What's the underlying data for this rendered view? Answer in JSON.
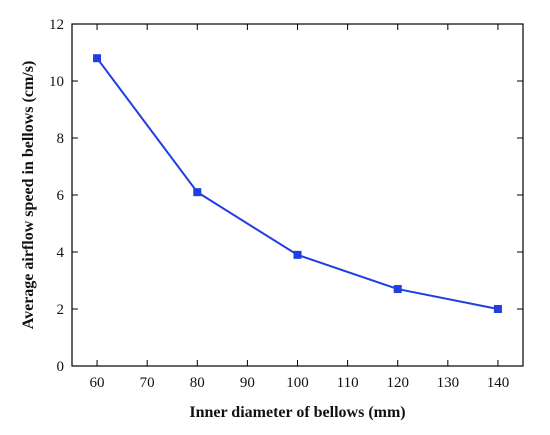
{
  "chart_data": {
    "type": "line",
    "xlabel": "Inner diameter of bellows (mm)",
    "ylabel": "Average airflow speed in bellows (cm/s)",
    "xlim": [
      55,
      145
    ],
    "ylim": [
      0,
      12
    ],
    "xticks": [
      60,
      70,
      80,
      90,
      100,
      110,
      120,
      130,
      140
    ],
    "yticks": [
      0,
      2,
      4,
      6,
      8,
      10,
      12
    ],
    "grid": false,
    "series": [
      {
        "x": [
          60,
          80,
          100,
          120,
          140
        ],
        "values": [
          10.8,
          6.1,
          3.9,
          2.7,
          2.0
        ],
        "color": "#1f3fe0",
        "marker": "square"
      }
    ]
  }
}
